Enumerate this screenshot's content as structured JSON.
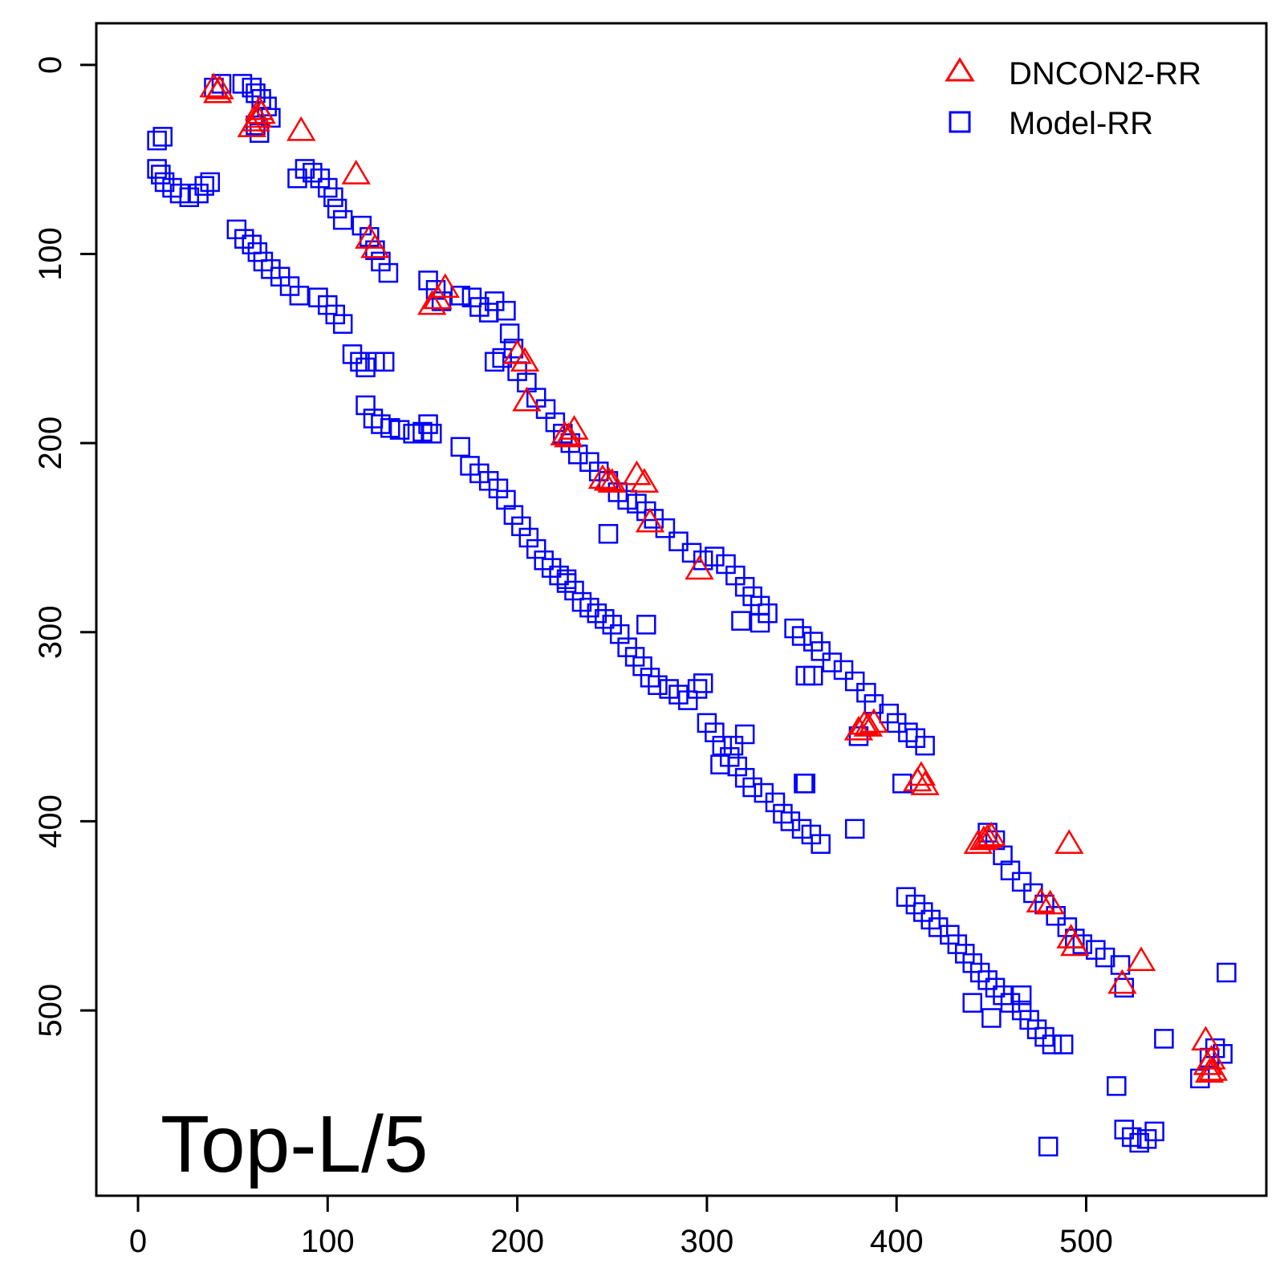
{
  "chart_data": {
    "type": "scatter",
    "title": "",
    "xlabel": "",
    "ylabel": "",
    "xlim": [
      -22,
      595
    ],
    "ylim": [
      -22,
      598
    ],
    "y_inverted": true,
    "x_ticks": [
      0,
      100,
      200,
      300,
      400,
      500
    ],
    "y_ticks": [
      0,
      100,
      200,
      300,
      400,
      500
    ],
    "grid": false,
    "legend_position": "top-right",
    "annotation": "Top-L/5",
    "series": [
      {
        "name": "DNCON2-RR",
        "marker": "triangle",
        "color": "#ff0000",
        "points": [
          [
            40,
            12
          ],
          [
            42,
            15
          ],
          [
            43,
            13
          ],
          [
            60,
            33
          ],
          [
            62,
            30
          ],
          [
            63,
            28
          ],
          [
            64,
            24
          ],
          [
            65,
            26
          ],
          [
            86,
            35
          ],
          [
            115,
            58
          ],
          [
            122,
            92
          ],
          [
            125,
            97
          ],
          [
            155,
            127
          ],
          [
            158,
            124
          ],
          [
            162,
            118
          ],
          [
            200,
            153
          ],
          [
            204,
            157
          ],
          [
            205,
            178
          ],
          [
            225,
            196
          ],
          [
            227,
            197
          ],
          [
            230,
            193
          ],
          [
            245,
            219
          ],
          [
            248,
            220
          ],
          [
            250,
            221
          ],
          [
            263,
            217
          ],
          [
            267,
            221
          ],
          [
            270,
            242
          ],
          [
            296,
            267
          ],
          [
            380,
            352
          ],
          [
            383,
            349
          ],
          [
            385,
            350
          ],
          [
            388,
            348
          ],
          [
            411,
            379
          ],
          [
            413,
            376
          ],
          [
            415,
            381
          ],
          [
            443,
            412
          ],
          [
            446,
            410
          ],
          [
            448,
            409
          ],
          [
            450,
            408
          ],
          [
            491,
            412
          ],
          [
            476,
            443
          ],
          [
            481,
            444
          ],
          [
            492,
            462
          ],
          [
            494,
            466
          ],
          [
            519,
            486
          ],
          [
            529,
            474
          ],
          [
            563,
            516
          ],
          [
            564,
            529
          ],
          [
            565,
            533
          ],
          [
            566,
            526
          ],
          [
            567,
            532
          ]
        ]
      },
      {
        "name": "Model-RR",
        "marker": "square",
        "color": "#0000ff",
        "points": [
          [
            40,
            12
          ],
          [
            44,
            10
          ],
          [
            55,
            10
          ],
          [
            60,
            12
          ],
          [
            62,
            15
          ],
          [
            65,
            18
          ],
          [
            68,
            22
          ],
          [
            70,
            28
          ],
          [
            62,
            32
          ],
          [
            64,
            36
          ],
          [
            10,
            40
          ],
          [
            13,
            38
          ],
          [
            10,
            55
          ],
          [
            12,
            58
          ],
          [
            14,
            62
          ],
          [
            18,
            65
          ],
          [
            22,
            68
          ],
          [
            27,
            70
          ],
          [
            32,
            68
          ],
          [
            35,
            64
          ],
          [
            38,
            62
          ],
          [
            84,
            60
          ],
          [
            88,
            55
          ],
          [
            92,
            57
          ],
          [
            96,
            60
          ],
          [
            100,
            65
          ],
          [
            103,
            70
          ],
          [
            105,
            76
          ],
          [
            108,
            82
          ],
          [
            118,
            85
          ],
          [
            122,
            91
          ],
          [
            125,
            98
          ],
          [
            128,
            104
          ],
          [
            132,
            110
          ],
          [
            52,
            87
          ],
          [
            56,
            92
          ],
          [
            60,
            95
          ],
          [
            63,
            99
          ],
          [
            66,
            104
          ],
          [
            70,
            108
          ],
          [
            75,
            112
          ],
          [
            80,
            117
          ],
          [
            85,
            122
          ],
          [
            95,
            123
          ],
          [
            100,
            127
          ],
          [
            104,
            132
          ],
          [
            108,
            137
          ],
          [
            113,
            153
          ],
          [
            117,
            157
          ],
          [
            120,
            160
          ],
          [
            125,
            157
          ],
          [
            130,
            157
          ],
          [
            120,
            180
          ],
          [
            124,
            187
          ],
          [
            128,
            190
          ],
          [
            133,
            192
          ],
          [
            138,
            193
          ],
          [
            145,
            195
          ],
          [
            150,
            194
          ],
          [
            153,
            190
          ],
          [
            155,
            195
          ],
          [
            153,
            114
          ],
          [
            157,
            119
          ],
          [
            160,
            125
          ],
          [
            170,
            122
          ],
          [
            176,
            123
          ],
          [
            180,
            128
          ],
          [
            185,
            131
          ],
          [
            188,
            125
          ],
          [
            194,
            130
          ],
          [
            196,
            142
          ],
          [
            198,
            150
          ],
          [
            188,
            157
          ],
          [
            192,
            155
          ],
          [
            200,
            162
          ],
          [
            205,
            168
          ],
          [
            210,
            176
          ],
          [
            215,
            182
          ],
          [
            220,
            189
          ],
          [
            224,
            195
          ],
          [
            228,
            200
          ],
          [
            232,
            206
          ],
          [
            238,
            210
          ],
          [
            243,
            215
          ],
          [
            248,
            220
          ],
          [
            253,
            226
          ],
          [
            258,
            230
          ],
          [
            263,
            232
          ],
          [
            268,
            236
          ],
          [
            272,
            240
          ],
          [
            278,
            245
          ],
          [
            285,
            252
          ],
          [
            292,
            258
          ],
          [
            298,
            262
          ],
          [
            304,
            260
          ],
          [
            310,
            264
          ],
          [
            315,
            270
          ],
          [
            320,
            276
          ],
          [
            324,
            281
          ],
          [
            328,
            286
          ],
          [
            332,
            290
          ],
          [
            318,
            294
          ],
          [
            328,
            295
          ],
          [
            346,
            298
          ],
          [
            350,
            302
          ],
          [
            356,
            305
          ],
          [
            360,
            310
          ],
          [
            366,
            316
          ],
          [
            372,
            320
          ],
          [
            378,
            326
          ],
          [
            384,
            332
          ],
          [
            388,
            338
          ],
          [
            396,
            343
          ],
          [
            400,
            348
          ],
          [
            406,
            353
          ],
          [
            410,
            356
          ],
          [
            415,
            360
          ],
          [
            352,
            323
          ],
          [
            356,
            323
          ],
          [
            380,
            355
          ],
          [
            170,
            202
          ],
          [
            175,
            212
          ],
          [
            180,
            216
          ],
          [
            185,
            220
          ],
          [
            190,
            224
          ],
          [
            194,
            230
          ],
          [
            198,
            238
          ],
          [
            202,
            244
          ],
          [
            206,
            250
          ],
          [
            210,
            256
          ],
          [
            214,
            262
          ],
          [
            218,
            266
          ],
          [
            222,
            270
          ],
          [
            226,
            274
          ],
          [
            230,
            278
          ],
          [
            234,
            284
          ],
          [
            238,
            287
          ],
          [
            242,
            290
          ],
          [
            246,
            293
          ],
          [
            250,
            296
          ],
          [
            254,
            301
          ],
          [
            258,
            308
          ],
          [
            262,
            313
          ],
          [
            266,
            318
          ],
          [
            270,
            324
          ],
          [
            274,
            328
          ],
          [
            280,
            330
          ],
          [
            285,
            333
          ],
          [
            290,
            336
          ],
          [
            295,
            330
          ],
          [
            298,
            327
          ],
          [
            300,
            348
          ],
          [
            304,
            353
          ],
          [
            308,
            360
          ],
          [
            312,
            366
          ],
          [
            316,
            371
          ],
          [
            320,
            377
          ],
          [
            324,
            382
          ],
          [
            330,
            385
          ],
          [
            336,
            390
          ],
          [
            340,
            396
          ],
          [
            344,
            400
          ],
          [
            350,
            404
          ],
          [
            355,
            407
          ],
          [
            360,
            412
          ],
          [
            226,
            272
          ],
          [
            248,
            248
          ],
          [
            268,
            296
          ],
          [
            320,
            354
          ],
          [
            314,
            360
          ],
          [
            307,
            370
          ],
          [
            378,
            404
          ],
          [
            403,
            380
          ],
          [
            351,
            380
          ],
          [
            352,
            380
          ],
          [
            448,
            406
          ],
          [
            452,
            410
          ],
          [
            456,
            418
          ],
          [
            460,
            426
          ],
          [
            466,
            432
          ],
          [
            472,
            438
          ],
          [
            478,
            444
          ],
          [
            484,
            450
          ],
          [
            490,
            456
          ],
          [
            494,
            462
          ],
          [
            498,
            465
          ],
          [
            505,
            468
          ],
          [
            510,
            472
          ],
          [
            518,
            476
          ],
          [
            520,
            488
          ],
          [
            405,
            440
          ],
          [
            410,
            444
          ],
          [
            414,
            448
          ],
          [
            418,
            452
          ],
          [
            422,
            456
          ],
          [
            428,
            460
          ],
          [
            432,
            465
          ],
          [
            436,
            470
          ],
          [
            440,
            475
          ],
          [
            444,
            480
          ],
          [
            448,
            484
          ],
          [
            452,
            488
          ],
          [
            456,
            492
          ],
          [
            460,
            496
          ],
          [
            466,
            500
          ],
          [
            470,
            505
          ],
          [
            474,
            510
          ],
          [
            478,
            514
          ],
          [
            482,
            518
          ],
          [
            488,
            518
          ],
          [
            450,
            504
          ],
          [
            440,
            496
          ],
          [
            466,
            492
          ],
          [
            516,
            540
          ],
          [
            520,
            563
          ],
          [
            524,
            567
          ],
          [
            528,
            570
          ],
          [
            532,
            568
          ],
          [
            536,
            564
          ],
          [
            541,
            515
          ],
          [
            480,
            572
          ],
          [
            560,
            536
          ],
          [
            565,
            525
          ],
          [
            568,
            520
          ],
          [
            572,
            523
          ],
          [
            574,
            480
          ]
        ]
      }
    ]
  }
}
